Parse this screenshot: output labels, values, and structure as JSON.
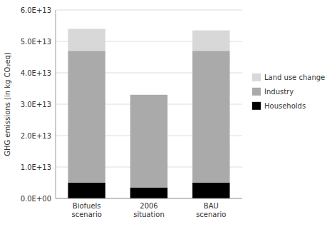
{
  "chart_data": {
    "type": "bar",
    "stacked": true,
    "categories": [
      "Biofuels\nscenario",
      "2006\nsituation",
      "BAU\nscenario"
    ],
    "series": [
      {
        "name": "Households",
        "color": "#000000",
        "values": [
          5000000000000.0,
          3500000000000.0,
          5000000000000.0
        ]
      },
      {
        "name": "Industry",
        "color": "#aaaaaa",
        "values": [
          42000000000000.0,
          29500000000000.0,
          42000000000000.0
        ]
      },
      {
        "name": "Land use change",
        "color": "#d8d8d8",
        "values": [
          7000000000000.0,
          0.0,
          6500000000000.0
        ]
      }
    ],
    "ylabel": "GHG emissions (in kg CO₂eq)",
    "ylim": [
      0,
      60000000000000.0
    ],
    "yticks": [
      {
        "value": 0,
        "label": "0.0E+00"
      },
      {
        "value": 10000000000000.0,
        "label": "1.0E+13"
      },
      {
        "value": 20000000000000.0,
        "label": "2.0E+13"
      },
      {
        "value": 30000000000000.0,
        "label": "3.0E+13"
      },
      {
        "value": 40000000000000.0,
        "label": "4.0E+13"
      },
      {
        "value": 50000000000000.0,
        "label": "5.0E+13"
      },
      {
        "value": 60000000000000.0,
        "label": "6.0E+13"
      }
    ],
    "grid": true,
    "legend": "right"
  }
}
